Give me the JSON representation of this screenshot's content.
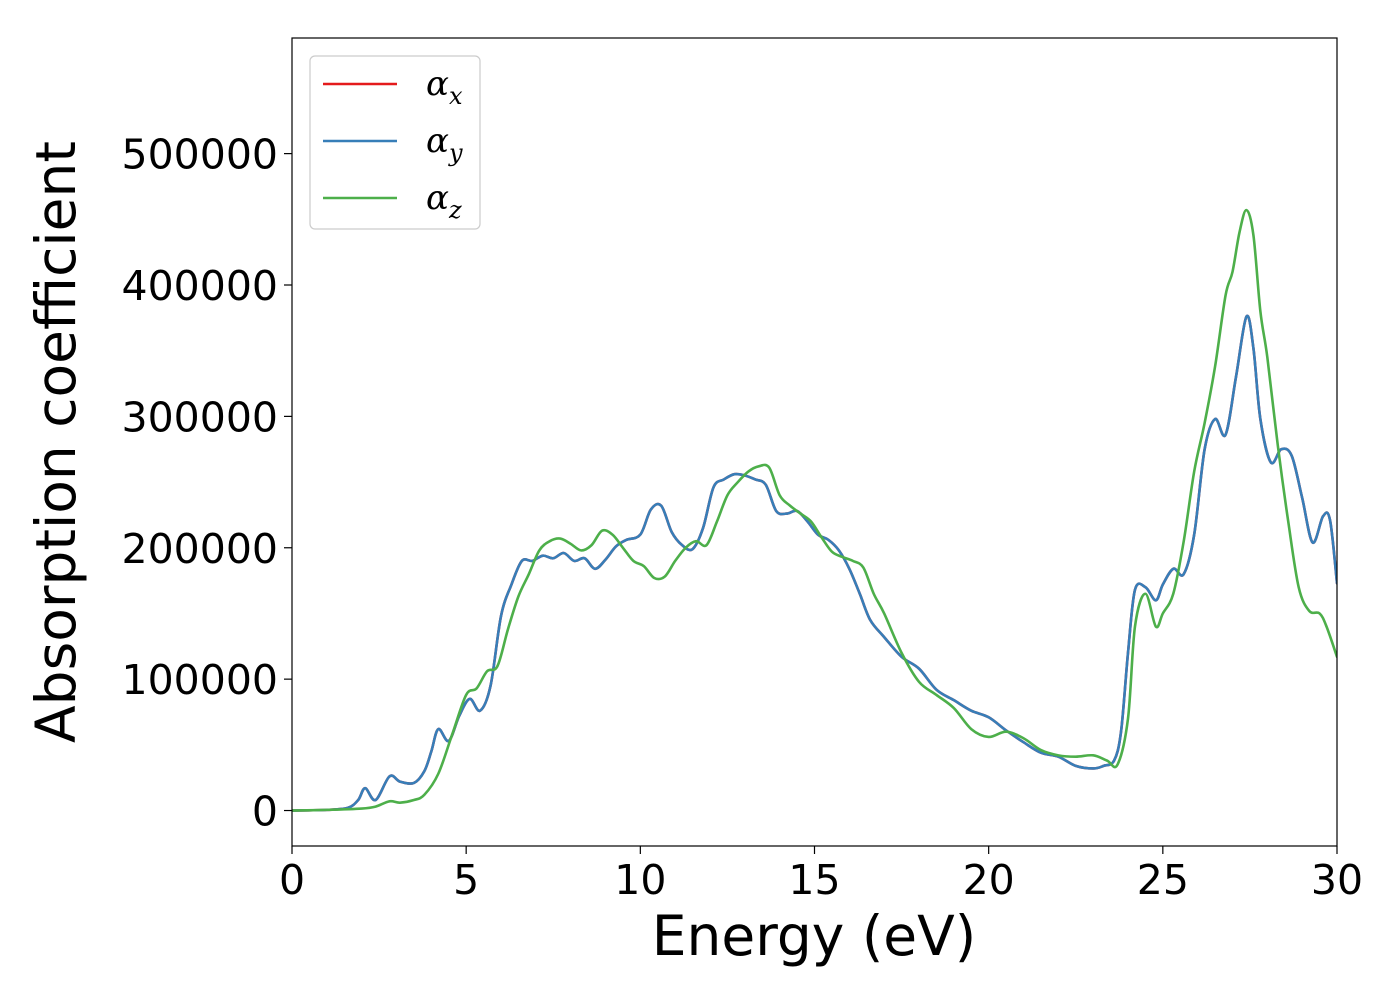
{
  "chart_data": {
    "type": "line",
    "title": "",
    "xlabel": "Energy (eV)",
    "ylabel": "Absorption coefficient",
    "xlim": [
      0,
      30
    ],
    "ylim": [
      -27000,
      588000
    ],
    "xticks": [
      0,
      5,
      10,
      15,
      20,
      25,
      30
    ],
    "yticks": [
      0,
      100000,
      200000,
      300000,
      400000,
      500000
    ],
    "grid": false,
    "legend_position": "top-left",
    "series": [
      {
        "name": "αx",
        "label_base": "α",
        "label_sub": "x",
        "color": "#e41a1c",
        "x": [
          0,
          1,
          1.6,
          1.9,
          2.1,
          2.4,
          2.8,
          3.1,
          3.5,
          3.8,
          4.0,
          4.2,
          4.5,
          4.8,
          5.1,
          5.4,
          5.7,
          6.0,
          6.3,
          6.6,
          6.9,
          7.2,
          7.5,
          7.8,
          8.1,
          8.4,
          8.7,
          9.0,
          9.3,
          9.6,
          10.0,
          10.3,
          10.6,
          10.9,
          11.2,
          11.5,
          11.8,
          12.1,
          12.4,
          12.7,
          13.0,
          13.3,
          13.6,
          13.9,
          14.2,
          14.5,
          14.8,
          15.1,
          15.4,
          15.7,
          16.0,
          16.3,
          16.6,
          17.0,
          17.5,
          18.0,
          18.5,
          19.0,
          19.5,
          20.0,
          20.5,
          21.0,
          21.5,
          22.0,
          22.5,
          23.0,
          23.3,
          23.6,
          23.8,
          24.0,
          24.2,
          24.5,
          24.8,
          25.0,
          25.3,
          25.6,
          25.9,
          26.2,
          26.5,
          26.8,
          27.1,
          27.4,
          27.6,
          27.8,
          28.1,
          28.4,
          28.7,
          29.0,
          29.3,
          29.6,
          29.8,
          30.0
        ],
        "y": [
          0,
          500,
          2000,
          8000,
          17000,
          8000,
          26000,
          22000,
          21000,
          30000,
          45000,
          62000,
          53000,
          72000,
          85000,
          76000,
          95000,
          148000,
          172000,
          190000,
          190000,
          194000,
          192000,
          196000,
          190000,
          192000,
          184000,
          191000,
          201000,
          206000,
          210000,
          229000,
          232000,
          212000,
          202000,
          199000,
          215000,
          246000,
          252000,
          256000,
          255000,
          252000,
          248000,
          228000,
          226000,
          228000,
          220000,
          210000,
          206000,
          198000,
          184000,
          165000,
          145000,
          132000,
          117000,
          108000,
          92000,
          84000,
          76000,
          71000,
          61000,
          52000,
          44000,
          41000,
          34000,
          32000,
          34000,
          38000,
          60000,
          120000,
          168000,
          170000,
          160000,
          172000,
          184000,
          180000,
          210000,
          275000,
          298000,
          286000,
          330000,
          376000,
          352000,
          298000,
          265000,
          275000,
          270000,
          238000,
          204000,
          224000,
          221000,
          173000
        ]
      },
      {
        "name": "αy",
        "label_base": "α",
        "label_sub": "y",
        "color": "#377eb8",
        "x": [
          0,
          1,
          1.6,
          1.9,
          2.1,
          2.4,
          2.8,
          3.1,
          3.5,
          3.8,
          4.0,
          4.2,
          4.5,
          4.8,
          5.1,
          5.4,
          5.7,
          6.0,
          6.3,
          6.6,
          6.9,
          7.2,
          7.5,
          7.8,
          8.1,
          8.4,
          8.7,
          9.0,
          9.3,
          9.6,
          10.0,
          10.3,
          10.6,
          10.9,
          11.2,
          11.5,
          11.8,
          12.1,
          12.4,
          12.7,
          13.0,
          13.3,
          13.6,
          13.9,
          14.2,
          14.5,
          14.8,
          15.1,
          15.4,
          15.7,
          16.0,
          16.3,
          16.6,
          17.0,
          17.5,
          18.0,
          18.5,
          19.0,
          19.5,
          20.0,
          20.5,
          21.0,
          21.5,
          22.0,
          22.5,
          23.0,
          23.3,
          23.6,
          23.8,
          24.0,
          24.2,
          24.5,
          24.8,
          25.0,
          25.3,
          25.6,
          25.9,
          26.2,
          26.5,
          26.8,
          27.1,
          27.4,
          27.6,
          27.8,
          28.1,
          28.4,
          28.7,
          29.0,
          29.3,
          29.6,
          29.8,
          30.0
        ],
        "y": [
          0,
          500,
          2000,
          8000,
          17000,
          8000,
          26000,
          22000,
          21000,
          30000,
          45000,
          62000,
          53000,
          72000,
          85000,
          76000,
          95000,
          148000,
          172000,
          190000,
          190000,
          194000,
          192000,
          196000,
          190000,
          192000,
          184000,
          191000,
          201000,
          206000,
          210000,
          229000,
          232000,
          212000,
          202000,
          199000,
          215000,
          246000,
          252000,
          256000,
          255000,
          252000,
          248000,
          228000,
          226000,
          228000,
          220000,
          210000,
          206000,
          198000,
          184000,
          165000,
          145000,
          132000,
          117000,
          108000,
          92000,
          84000,
          76000,
          71000,
          61000,
          52000,
          44000,
          41000,
          34000,
          32000,
          34000,
          38000,
          60000,
          120000,
          168000,
          170000,
          160000,
          172000,
          184000,
          180000,
          210000,
          275000,
          298000,
          286000,
          330000,
          376000,
          352000,
          298000,
          265000,
          275000,
          270000,
          238000,
          204000,
          224000,
          221000,
          173000
        ]
      },
      {
        "name": "αz",
        "label_base": "α",
        "label_sub": "z",
        "color": "#4daf4a",
        "x": [
          0,
          1,
          2.0,
          2.4,
          2.8,
          3.1,
          3.5,
          3.8,
          4.2,
          4.6,
          5.0,
          5.3,
          5.6,
          5.9,
          6.2,
          6.5,
          6.8,
          7.1,
          7.4,
          7.7,
          8.0,
          8.3,
          8.6,
          8.9,
          9.2,
          9.5,
          9.8,
          10.1,
          10.4,
          10.7,
          11.0,
          11.3,
          11.6,
          11.9,
          12.2,
          12.5,
          12.8,
          13.1,
          13.4,
          13.7,
          14.0,
          14.3,
          14.6,
          14.9,
          15.2,
          15.5,
          15.8,
          16.1,
          16.4,
          16.7,
          17.0,
          17.5,
          18.0,
          18.5,
          19.0,
          19.5,
          20.0,
          20.5,
          21.0,
          21.5,
          22.0,
          22.5,
          23.0,
          23.4,
          23.7,
          24.0,
          24.2,
          24.5,
          24.8,
          25.0,
          25.3,
          25.6,
          25.9,
          26.2,
          26.5,
          26.8,
          27.0,
          27.2,
          27.4,
          27.6,
          27.8,
          28.0,
          28.3,
          28.6,
          28.9,
          29.2,
          29.5,
          29.7,
          30.0
        ],
        "y": [
          0,
          500,
          1500,
          3000,
          7000,
          6000,
          8000,
          12000,
          28000,
          58000,
          88000,
          93000,
          106000,
          110000,
          138000,
          163000,
          180000,
          198000,
          205000,
          207000,
          203000,
          198000,
          202000,
          213000,
          210000,
          200000,
          190000,
          186000,
          177000,
          178000,
          190000,
          200000,
          205000,
          202000,
          220000,
          240000,
          250000,
          258000,
          262000,
          261000,
          240000,
          232000,
          226000,
          220000,
          208000,
          197000,
          193000,
          190000,
          185000,
          165000,
          150000,
          120000,
          98000,
          88000,
          78000,
          62000,
          56000,
          60000,
          55000,
          46000,
          42000,
          41000,
          42000,
          38000,
          35000,
          70000,
          140000,
          165000,
          140000,
          150000,
          165000,
          205000,
          258000,
          295000,
          338000,
          392000,
          410000,
          440000,
          457000,
          438000,
          380000,
          345000,
          278000,
          220000,
          170000,
          152000,
          150000,
          140000,
          117000
        ]
      }
    ]
  }
}
